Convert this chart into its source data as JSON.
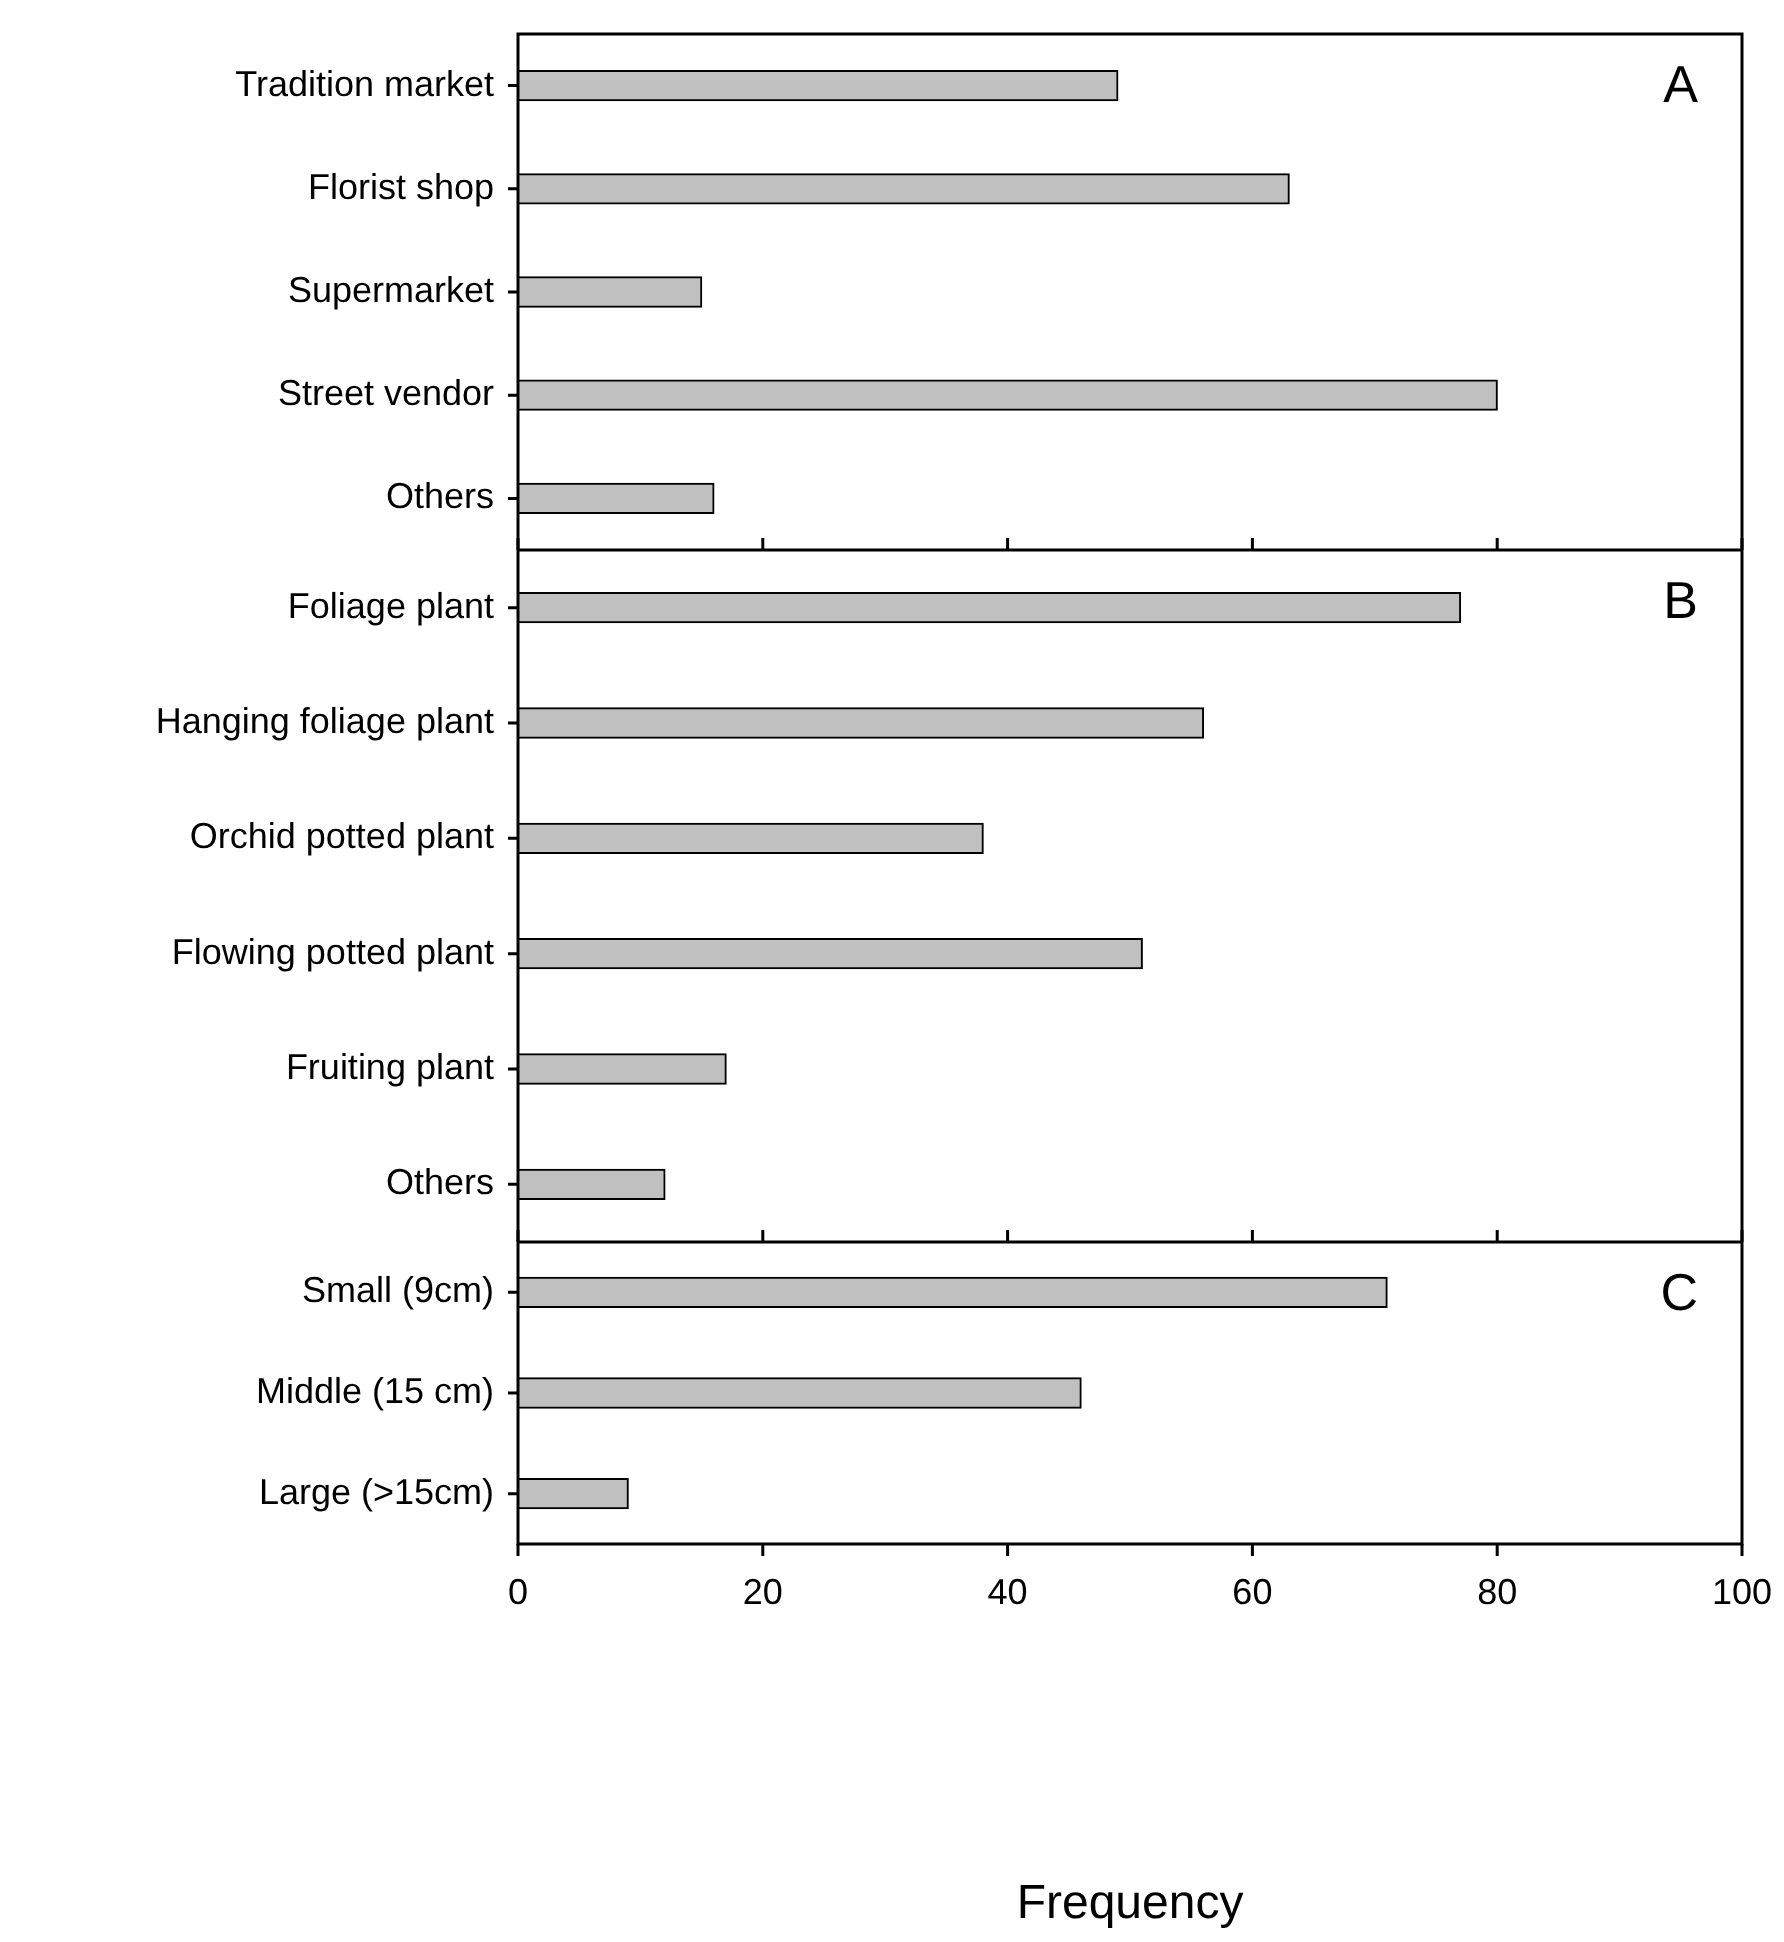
{
  "chart_data": [
    {
      "type": "bar",
      "orientation": "horizontal",
      "categories": [
        "Tradition market",
        "Florist shop",
        "Supermarket",
        "Street vendor",
        "Others"
      ],
      "values": [
        49,
        63,
        15,
        80,
        16
      ],
      "color": "#c0c0c0",
      "xlim": [
        0,
        100
      ],
      "xticks": [
        0,
        20,
        40,
        60,
        80,
        100
      ],
      "tick_labels": "y",
      "annotations": [
        "A"
      ]
    },
    {
      "type": "bar",
      "orientation": "horizontal",
      "categories": [
        "Foliage plant",
        "Hanging foliage plant",
        "Orchid potted plant",
        "Flowing potted plant",
        "Fruiting plant",
        "Others"
      ],
      "values": [
        77,
        56,
        38,
        51,
        17,
        12
      ],
      "color": "#c0c0c0",
      "xlim": [
        0,
        100
      ],
      "xticks": [
        0,
        20,
        40,
        60,
        80,
        100
      ],
      "tick_labels": "y",
      "annotations": [
        "B"
      ]
    },
    {
      "type": "bar",
      "orientation": "horizontal",
      "categories": [
        "Small (9cm)",
        "Middle (15 cm)",
        "Large (>15cm)"
      ],
      "values": [
        71,
        46,
        9
      ],
      "color": "#c0c0c0",
      "xlim": [
        0,
        100
      ],
      "xticks": [
        0,
        20,
        40,
        60,
        80,
        100
      ],
      "xlabel": "Frequency",
      "annotations": [
        "C"
      ]
    }
  ]
}
